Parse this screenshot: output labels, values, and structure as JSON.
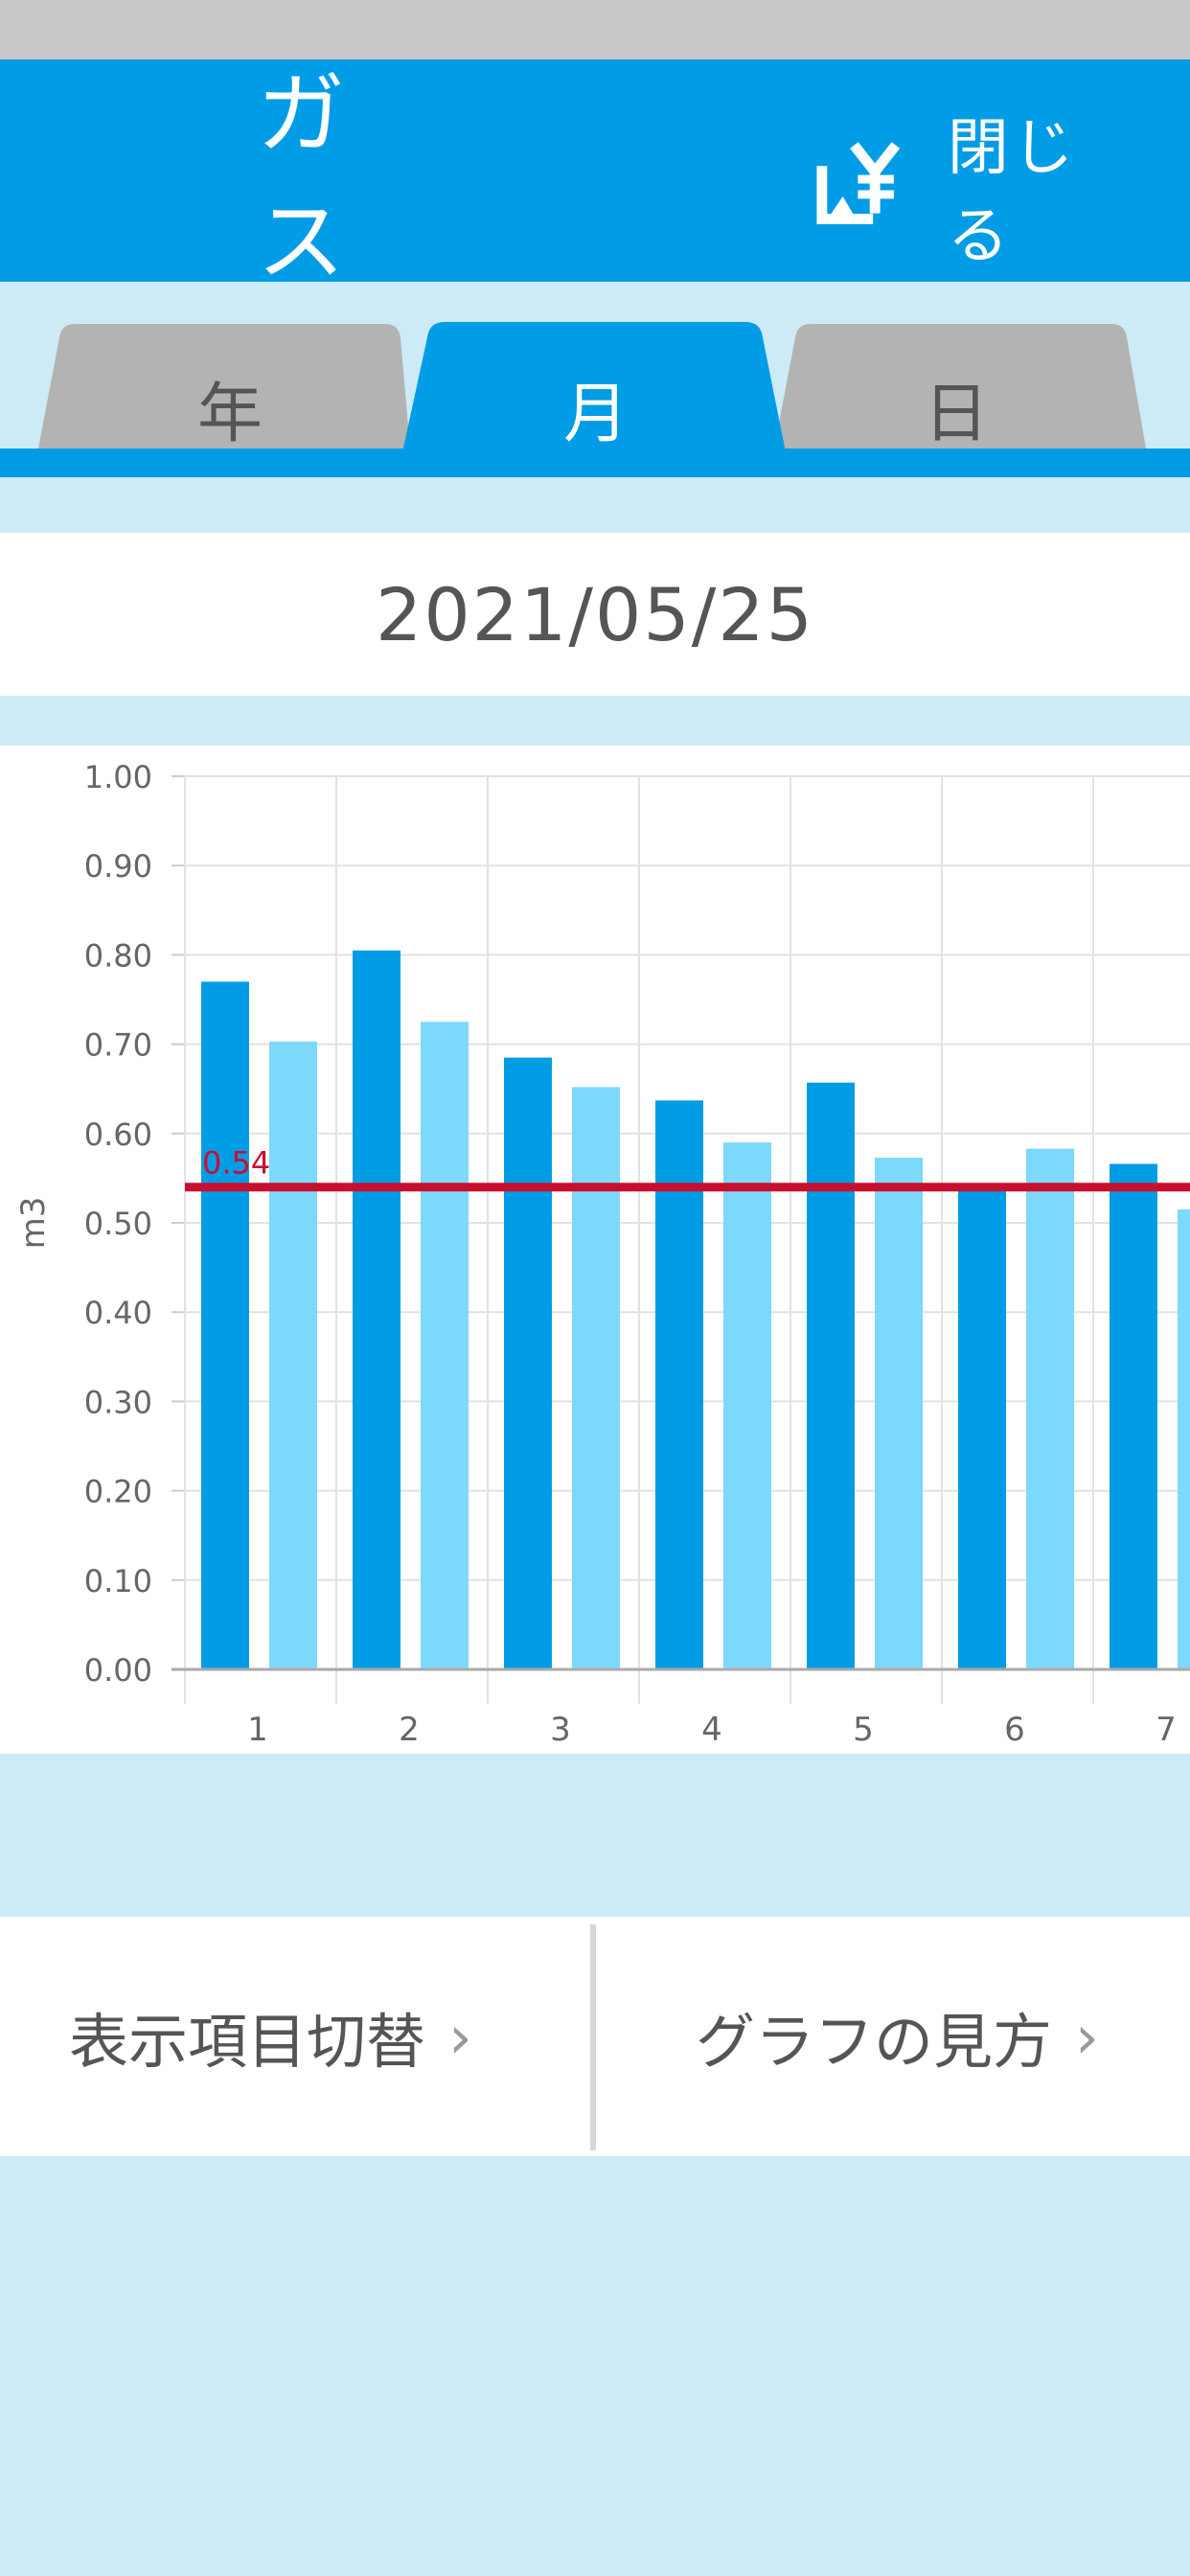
{
  "header": {
    "title": "ガス",
    "close_label": "閉じる",
    "close_icon": "yen-icon"
  },
  "tabs": [
    {
      "label": "年",
      "active": false
    },
    {
      "label": "月",
      "active": true
    },
    {
      "label": "日",
      "active": false
    }
  ],
  "date": "2021/05/25",
  "colors": {
    "header": "#009de6",
    "background": "#cdebf7",
    "series_current": "#009de6",
    "series_previous": "#7dd9fb",
    "average_line": "#c8102e",
    "inactive_tab": "#b3b3b3"
  },
  "chart_data": {
    "type": "bar",
    "ylabel": "m3",
    "ylim": [
      0,
      1.0
    ],
    "yticks": [
      "0.00",
      "0.10",
      "0.20",
      "0.30",
      "0.40",
      "0.50",
      "0.60",
      "0.70",
      "0.80",
      "0.90",
      "1.00"
    ],
    "categories": [
      "1",
      "2",
      "3",
      "4",
      "5",
      "6",
      "7"
    ],
    "series": [
      {
        "values": [
          0.77,
          0.805,
          0.685,
          0.637,
          0.657,
          0.54,
          0.566
        ]
      },
      {
        "values": [
          0.703,
          0.725,
          0.652,
          0.59,
          0.573,
          0.583,
          0.515
        ]
      }
    ],
    "reference_line": {
      "value": 0.54,
      "label": "0.54"
    },
    "grid": true
  },
  "buttons": {
    "display_toggle": "表示項目切替",
    "how_to_read": "グラフの見方",
    "chevron": "›"
  }
}
